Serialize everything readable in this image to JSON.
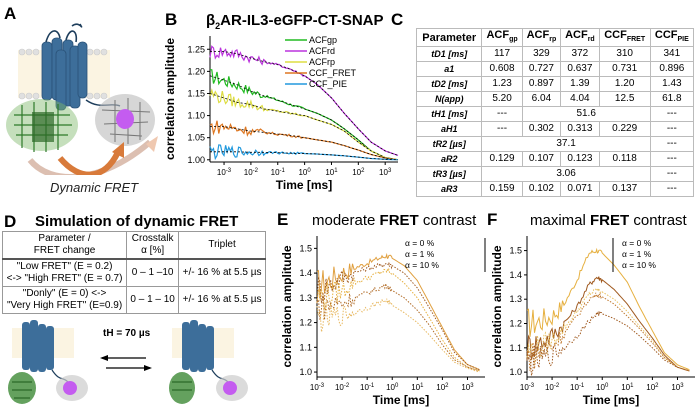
{
  "panelA": {
    "letter": "A",
    "caption": "Dynamic FRET"
  },
  "panelB": {
    "letter": "B",
    "title_prefix": "β",
    "title_sub": "2",
    "title_rest": "AR-IL3-eGFP-CT-SNAP"
  },
  "panelC": {
    "letter": "C",
    "headers": [
      "Parameter",
      "ACFgp",
      "ACFrp",
      "ACFrd",
      "CCFFRET",
      "CCFPIE"
    ],
    "header_parts": [
      {
        "main": "Parameter",
        "sub": ""
      },
      {
        "main": "ACF",
        "sub": "gp"
      },
      {
        "main": "ACF",
        "sub": "rp"
      },
      {
        "main": "ACF",
        "sub": "rd"
      },
      {
        "main": "CCF",
        "sub": "FRET"
      },
      {
        "main": "CCF",
        "sub": "PIE"
      }
    ],
    "rows": [
      {
        "param": "tD1 [ms]",
        "values": [
          "117",
          "329",
          "372",
          "310",
          "341"
        ]
      },
      {
        "param": "a1",
        "values": [
          "0.608",
          "0.727",
          "0.637",
          "0.731",
          "0.896"
        ]
      },
      {
        "param": "tD2 [ms]",
        "values": [
          "1.23",
          "0.897",
          "1.39",
          "1.20",
          "1.43"
        ]
      },
      {
        "param": "N(app)",
        "values": [
          "5.20",
          "6.04",
          "4.04",
          "12.5",
          "61.8"
        ]
      },
      {
        "param": "tH1 [ms]",
        "values": [
          "---",
          "51.6",
          "---"
        ]
      },
      {
        "param": "aH1",
        "values": [
          "---",
          "0.302",
          "0.313",
          "0.229",
          "---"
        ]
      },
      {
        "param": "tR2 [µs]",
        "values": [
          "37.1",
          "---"
        ]
      },
      {
        "param": "aR2",
        "values": [
          "0.129",
          "0.107",
          "0.123",
          "0.118",
          "---"
        ]
      },
      {
        "param": "tR3 [µs]",
        "values": [
          "3.06",
          "---"
        ]
      },
      {
        "param": "aR3",
        "values": [
          "0.159",
          "0.102",
          "0.071",
          "0.137",
          "---"
        ]
      }
    ]
  },
  "panelD": {
    "letter": "D",
    "title": "Simulation of dynamic FRET",
    "headers": [
      "Parameter / FRET change",
      "Crosstalk α [%]",
      "Triplet"
    ],
    "header_lines": [
      [
        "Parameter /",
        "FRET change"
      ],
      [
        "Crosstalk",
        "α [%]"
      ],
      [
        "Triplet"
      ]
    ],
    "rows": [
      {
        "change_lines": [
          "\"Low FRET\" (E = 0.2)",
          "<-> \"High FRET\" (E = 0.7)"
        ],
        "crosstalk": "0 – 1 –10",
        "triplet": "+/- 16 % at 5.5 µs"
      },
      {
        "change_lines": [
          "\"Donly\" (E = 0) <->",
          "\"Very High FRET\" (E=0.9)"
        ],
        "crosstalk": "0 – 1 – 10",
        "triplet": "+/- 16 % at 5.5 µs"
      }
    ],
    "rate_label": "tH = 70 µs"
  },
  "panelE": {
    "letter": "E",
    "title_pre": "moderate ",
    "title_bold": "FRET",
    "title_post": " contrast"
  },
  "panelF": {
    "letter": "F",
    "title_pre": "maximal ",
    "title_bold": "FRET",
    "title_post": " contrast"
  },
  "chart_data": [
    {
      "id": "B",
      "type": "line",
      "title": "β2AR-IL3-eGFP-CT-SNAP",
      "xlabel": "Time [ms]",
      "ylabel": "correlation amplitude",
      "xscale": "log",
      "xlim": [
        0.0003,
        3000
      ],
      "ylim": [
        0.995,
        1.28
      ],
      "xticks": [
        0.001,
        0.01,
        0.1,
        1,
        10,
        100,
        1000
      ],
      "xtick_labels": [
        "10-3",
        "10-2",
        "10-1",
        "100",
        "101",
        "102",
        "103"
      ],
      "yticks": [
        1.0,
        1.05,
        1.1,
        1.15,
        1.2,
        1.25
      ],
      "ytick_labels": [
        "1.00",
        "1.05",
        "1.10",
        "1.15",
        "1.20",
        "1.25"
      ],
      "legend_position": "top-right",
      "series": [
        {
          "name": "ACFgp",
          "color": "#22bb22",
          "x": [
            0.0003,
            0.001,
            0.003,
            0.01,
            0.03,
            0.1,
            0.3,
            1,
            3,
            10,
            30,
            100,
            300,
            1000,
            3000
          ],
          "y": [
            1.19,
            1.18,
            1.17,
            1.155,
            1.145,
            1.135,
            1.125,
            1.115,
            1.105,
            1.09,
            1.07,
            1.045,
            1.02,
            1.005,
            1.0
          ]
        },
        {
          "name": "ACFrd",
          "color": "#bb33dd",
          "x": [
            0.0003,
            0.001,
            0.003,
            0.01,
            0.03,
            0.1,
            0.3,
            1,
            3,
            10,
            30,
            100,
            300,
            1000,
            3000
          ],
          "y": [
            1.245,
            1.245,
            1.24,
            1.23,
            1.222,
            1.215,
            1.205,
            1.19,
            1.17,
            1.14,
            1.105,
            1.07,
            1.04,
            1.02,
            1.01
          ]
        },
        {
          "name": "ACFrp",
          "color": "#dddd44",
          "x": [
            0.0003,
            0.001,
            0.003,
            0.01,
            0.03,
            0.1,
            0.3,
            1,
            3,
            10,
            30,
            100,
            300,
            1000,
            3000
          ],
          "y": [
            1.15,
            1.14,
            1.13,
            1.125,
            1.115,
            1.11,
            1.105,
            1.1,
            1.09,
            1.08,
            1.065,
            1.04,
            1.02,
            1.005,
            1.0
          ]
        },
        {
          "name": "CCF_FRET",
          "color": "#dd7722",
          "x": [
            0.0003,
            0.001,
            0.003,
            0.01,
            0.03,
            0.1,
            0.3,
            1,
            3,
            10,
            30,
            100,
            300,
            1000,
            3000
          ],
          "y": [
            1.075,
            1.075,
            1.07,
            1.065,
            1.062,
            1.058,
            1.055,
            1.05,
            1.045,
            1.04,
            1.032,
            1.022,
            1.012,
            1.004,
            1.0
          ]
        },
        {
          "name": "CCF_PIE",
          "color": "#2299dd",
          "x": [
            0.0003,
            0.001,
            0.003,
            0.01,
            0.03,
            0.1,
            0.3,
            1,
            3,
            10,
            30,
            100,
            300,
            1000,
            3000
          ],
          "y": [
            1.018,
            1.018,
            1.018,
            1.017,
            1.017,
            1.016,
            1.015,
            1.014,
            1.013,
            1.011,
            1.009,
            1.006,
            1.003,
            1.001,
            1.0
          ]
        }
      ]
    },
    {
      "id": "E",
      "type": "line",
      "title": "moderate FRET contrast",
      "xlabel": "Time [ms]",
      "ylabel": "correlation amplitude",
      "xscale": "log",
      "xlim": [
        0.001,
        5000
      ],
      "ylim": [
        0.98,
        1.55
      ],
      "xticks": [
        0.001,
        0.01,
        0.1,
        1,
        10,
        100,
        1000
      ],
      "xtick_labels": [
        "10-3",
        "10-2",
        "10-1",
        "100",
        "101",
        "102",
        "103"
      ],
      "yticks": [
        1.0,
        1.1,
        1.2,
        1.3,
        1.4,
        1.5
      ],
      "ytick_labels": [
        "1.0",
        "1.1",
        "1.2",
        "1.3",
        "1.4",
        "1.5"
      ],
      "legend": [
        "α = 0 %",
        "α = 1 %",
        "α = 10 %"
      ],
      "legend_position": "top-right",
      "series": [
        {
          "name": "α = 0 % (set 1)",
          "color": "#e0a040",
          "style": "solid",
          "x": [
            0.001,
            0.003,
            0.01,
            0.03,
            0.1,
            0.3,
            0.6,
            1,
            3,
            10,
            30,
            100,
            300,
            1000,
            3000
          ],
          "y": [
            1.35,
            1.37,
            1.4,
            1.42,
            1.44,
            1.46,
            1.47,
            1.46,
            1.43,
            1.37,
            1.28,
            1.18,
            1.09,
            1.03,
            1.01
          ]
        },
        {
          "name": "α = 1 % (set 1)",
          "color": "#a05a20",
          "style": "dotted",
          "x": [
            0.001,
            0.003,
            0.01,
            0.03,
            0.1,
            0.3,
            0.6,
            1,
            3,
            10,
            30,
            100,
            300,
            1000,
            3000
          ],
          "y": [
            1.33,
            1.35,
            1.38,
            1.4,
            1.42,
            1.43,
            1.44,
            1.43,
            1.4,
            1.34,
            1.26,
            1.17,
            1.08,
            1.03,
            1.01
          ]
        },
        {
          "name": "α = 0 % (set 2)",
          "color": "#e6b040",
          "style": "dotted",
          "x": [
            0.001,
            0.003,
            0.01,
            0.03,
            0.1,
            0.3,
            0.6,
            1,
            3,
            10,
            30,
            100,
            300,
            1000,
            3000
          ],
          "y": [
            1.3,
            1.31,
            1.33,
            1.36,
            1.38,
            1.4,
            1.41,
            1.4,
            1.36,
            1.3,
            1.22,
            1.13,
            1.06,
            1.02,
            1.005
          ]
        },
        {
          "name": "α = 1 % (set 2)",
          "color": "#b06a25",
          "style": "dotted",
          "x": [
            0.001,
            0.003,
            0.01,
            0.03,
            0.1,
            0.3,
            0.6,
            1,
            3,
            10,
            30,
            100,
            300,
            1000,
            3000
          ],
          "y": [
            1.27,
            1.27,
            1.28,
            1.3,
            1.32,
            1.34,
            1.35,
            1.33,
            1.3,
            1.25,
            1.19,
            1.11,
            1.05,
            1.02,
            1.005
          ]
        },
        {
          "name": "α = 10 %",
          "color": "#e8b860",
          "style": "dotted",
          "x": [
            0.001,
            0.003,
            0.01,
            0.03,
            0.1,
            0.3,
            0.6,
            1,
            3,
            10,
            30,
            100,
            300,
            1000,
            3000
          ],
          "y": [
            1.22,
            1.22,
            1.23,
            1.24,
            1.26,
            1.28,
            1.29,
            1.27,
            1.24,
            1.2,
            1.15,
            1.09,
            1.04,
            1.015,
            1.0
          ]
        }
      ]
    },
    {
      "id": "F",
      "type": "line",
      "title": "maximal FRET contrast",
      "xlabel": "Time [ms]",
      "ylabel": "correlation amplitude",
      "xscale": "log",
      "xlim": [
        0.001,
        5000
      ],
      "ylim": [
        0.98,
        1.56
      ],
      "xticks": [
        0.001,
        0.01,
        0.1,
        1,
        10,
        100,
        1000
      ],
      "xtick_labels": [
        "10-3",
        "10-2",
        "10-1",
        "100",
        "101",
        "102",
        "103"
      ],
      "yticks": [
        1.0,
        1.1,
        1.2,
        1.3,
        1.4,
        1.5
      ],
      "ytick_labels": [
        "1.0",
        "1.1",
        "1.2",
        "1.3",
        "1.4",
        "1.5"
      ],
      "legend": [
        "α = 0 %",
        "α = 1 %",
        "α = 10 %"
      ],
      "legend_position": "top-right",
      "series": [
        {
          "name": "α = 0 % (set 1)",
          "color": "#e6b040",
          "style": "solid",
          "x": [
            0.001,
            0.003,
            0.01,
            0.03,
            0.1,
            0.3,
            0.6,
            1,
            3,
            10,
            30,
            100,
            300,
            1000,
            3000
          ],
          "y": [
            1.2,
            1.21,
            1.23,
            1.28,
            1.38,
            1.49,
            1.5,
            1.49,
            1.44,
            1.37,
            1.27,
            1.17,
            1.08,
            1.03,
            1.01
          ]
        },
        {
          "name": "α = 1 % (set 1)",
          "color": "#a05a20",
          "style": "solid",
          "x": [
            0.001,
            0.003,
            0.01,
            0.03,
            0.1,
            0.3,
            0.6,
            1,
            3,
            10,
            30,
            100,
            300,
            1000,
            3000
          ],
          "y": [
            1.1,
            1.12,
            1.15,
            1.2,
            1.27,
            1.36,
            1.39,
            1.38,
            1.34,
            1.28,
            1.21,
            1.14,
            1.07,
            1.02,
            1.005
          ]
        },
        {
          "name": "α = 0 % (set 2)",
          "color": "#e8c060",
          "style": "dotted",
          "x": [
            0.001,
            0.003,
            0.01,
            0.03,
            0.1,
            0.3,
            0.6,
            1,
            3,
            10,
            30,
            100,
            300,
            1000,
            3000
          ],
          "y": [
            1.08,
            1.1,
            1.13,
            1.18,
            1.25,
            1.32,
            1.34,
            1.33,
            1.3,
            1.25,
            1.19,
            1.13,
            1.06,
            1.02,
            1.005
          ]
        },
        {
          "name": "α = 1 % (set 2)",
          "color": "#c07a30",
          "style": "dotted",
          "x": [
            0.001,
            0.003,
            0.01,
            0.03,
            0.1,
            0.3,
            0.6,
            1,
            3,
            10,
            30,
            100,
            300,
            1000,
            3000
          ],
          "y": [
            1.06,
            1.08,
            1.11,
            1.16,
            1.23,
            1.3,
            1.32,
            1.31,
            1.28,
            1.23,
            1.18,
            1.12,
            1.06,
            1.02,
            1.005
          ]
        },
        {
          "name": "α = 10 %",
          "color": "#a05a20",
          "style": "dotted",
          "x": [
            0.001,
            0.003,
            0.01,
            0.03,
            0.1,
            0.3,
            0.6,
            1,
            3,
            10,
            30,
            100,
            300,
            1000,
            3000
          ],
          "y": [
            1.04,
            1.05,
            1.07,
            1.1,
            1.15,
            1.21,
            1.24,
            1.24,
            1.22,
            1.19,
            1.15,
            1.1,
            1.05,
            1.02,
            1.005
          ]
        }
      ]
    }
  ]
}
